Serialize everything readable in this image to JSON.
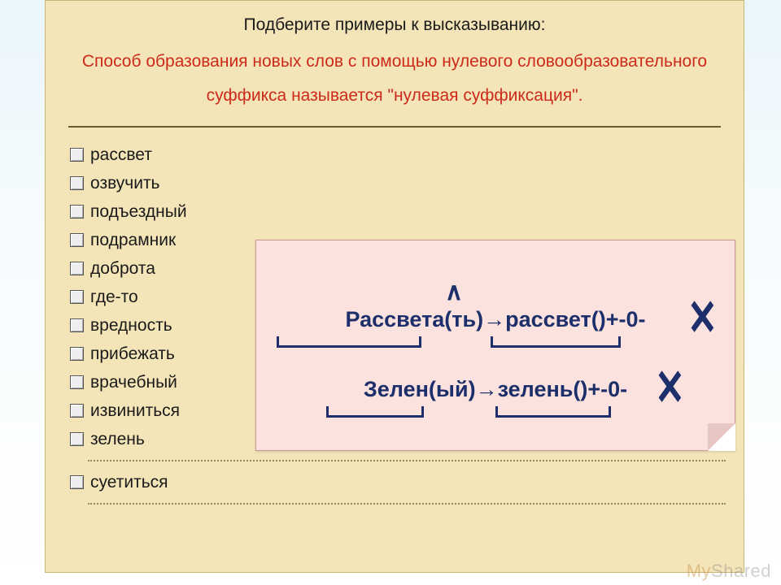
{
  "header": {
    "title": "Подберите примеры к высказыванию:",
    "subtitle": "Способ образования новых слов с помощью нулевого словообразовательного суффикса называется \"нулевая суффиксация\"."
  },
  "options": [
    "рассвет",
    "озвучить",
    "подъездный",
    "подрамник",
    "доброта",
    "где-то",
    "вредность",
    "прибежать",
    "врачебный",
    "извиниться",
    "зелень",
    "суетиться"
  ],
  "callout": {
    "line1": "Рассвета(ть)→рассвет()+-0-",
    "line2": "Зелен(ый)→зелень()+-0-",
    "caret": "∧",
    "cross": "✕",
    "colors": {
      "box_bg": "#fbe2de",
      "text": "#1d2f6b"
    }
  },
  "watermark": {
    "part1": "My",
    "part2": "Shared"
  },
  "colors": {
    "panel_bg": "#f4e5b9",
    "subtitle": "#cc2a1a",
    "body_text": "#1a1a1a"
  }
}
